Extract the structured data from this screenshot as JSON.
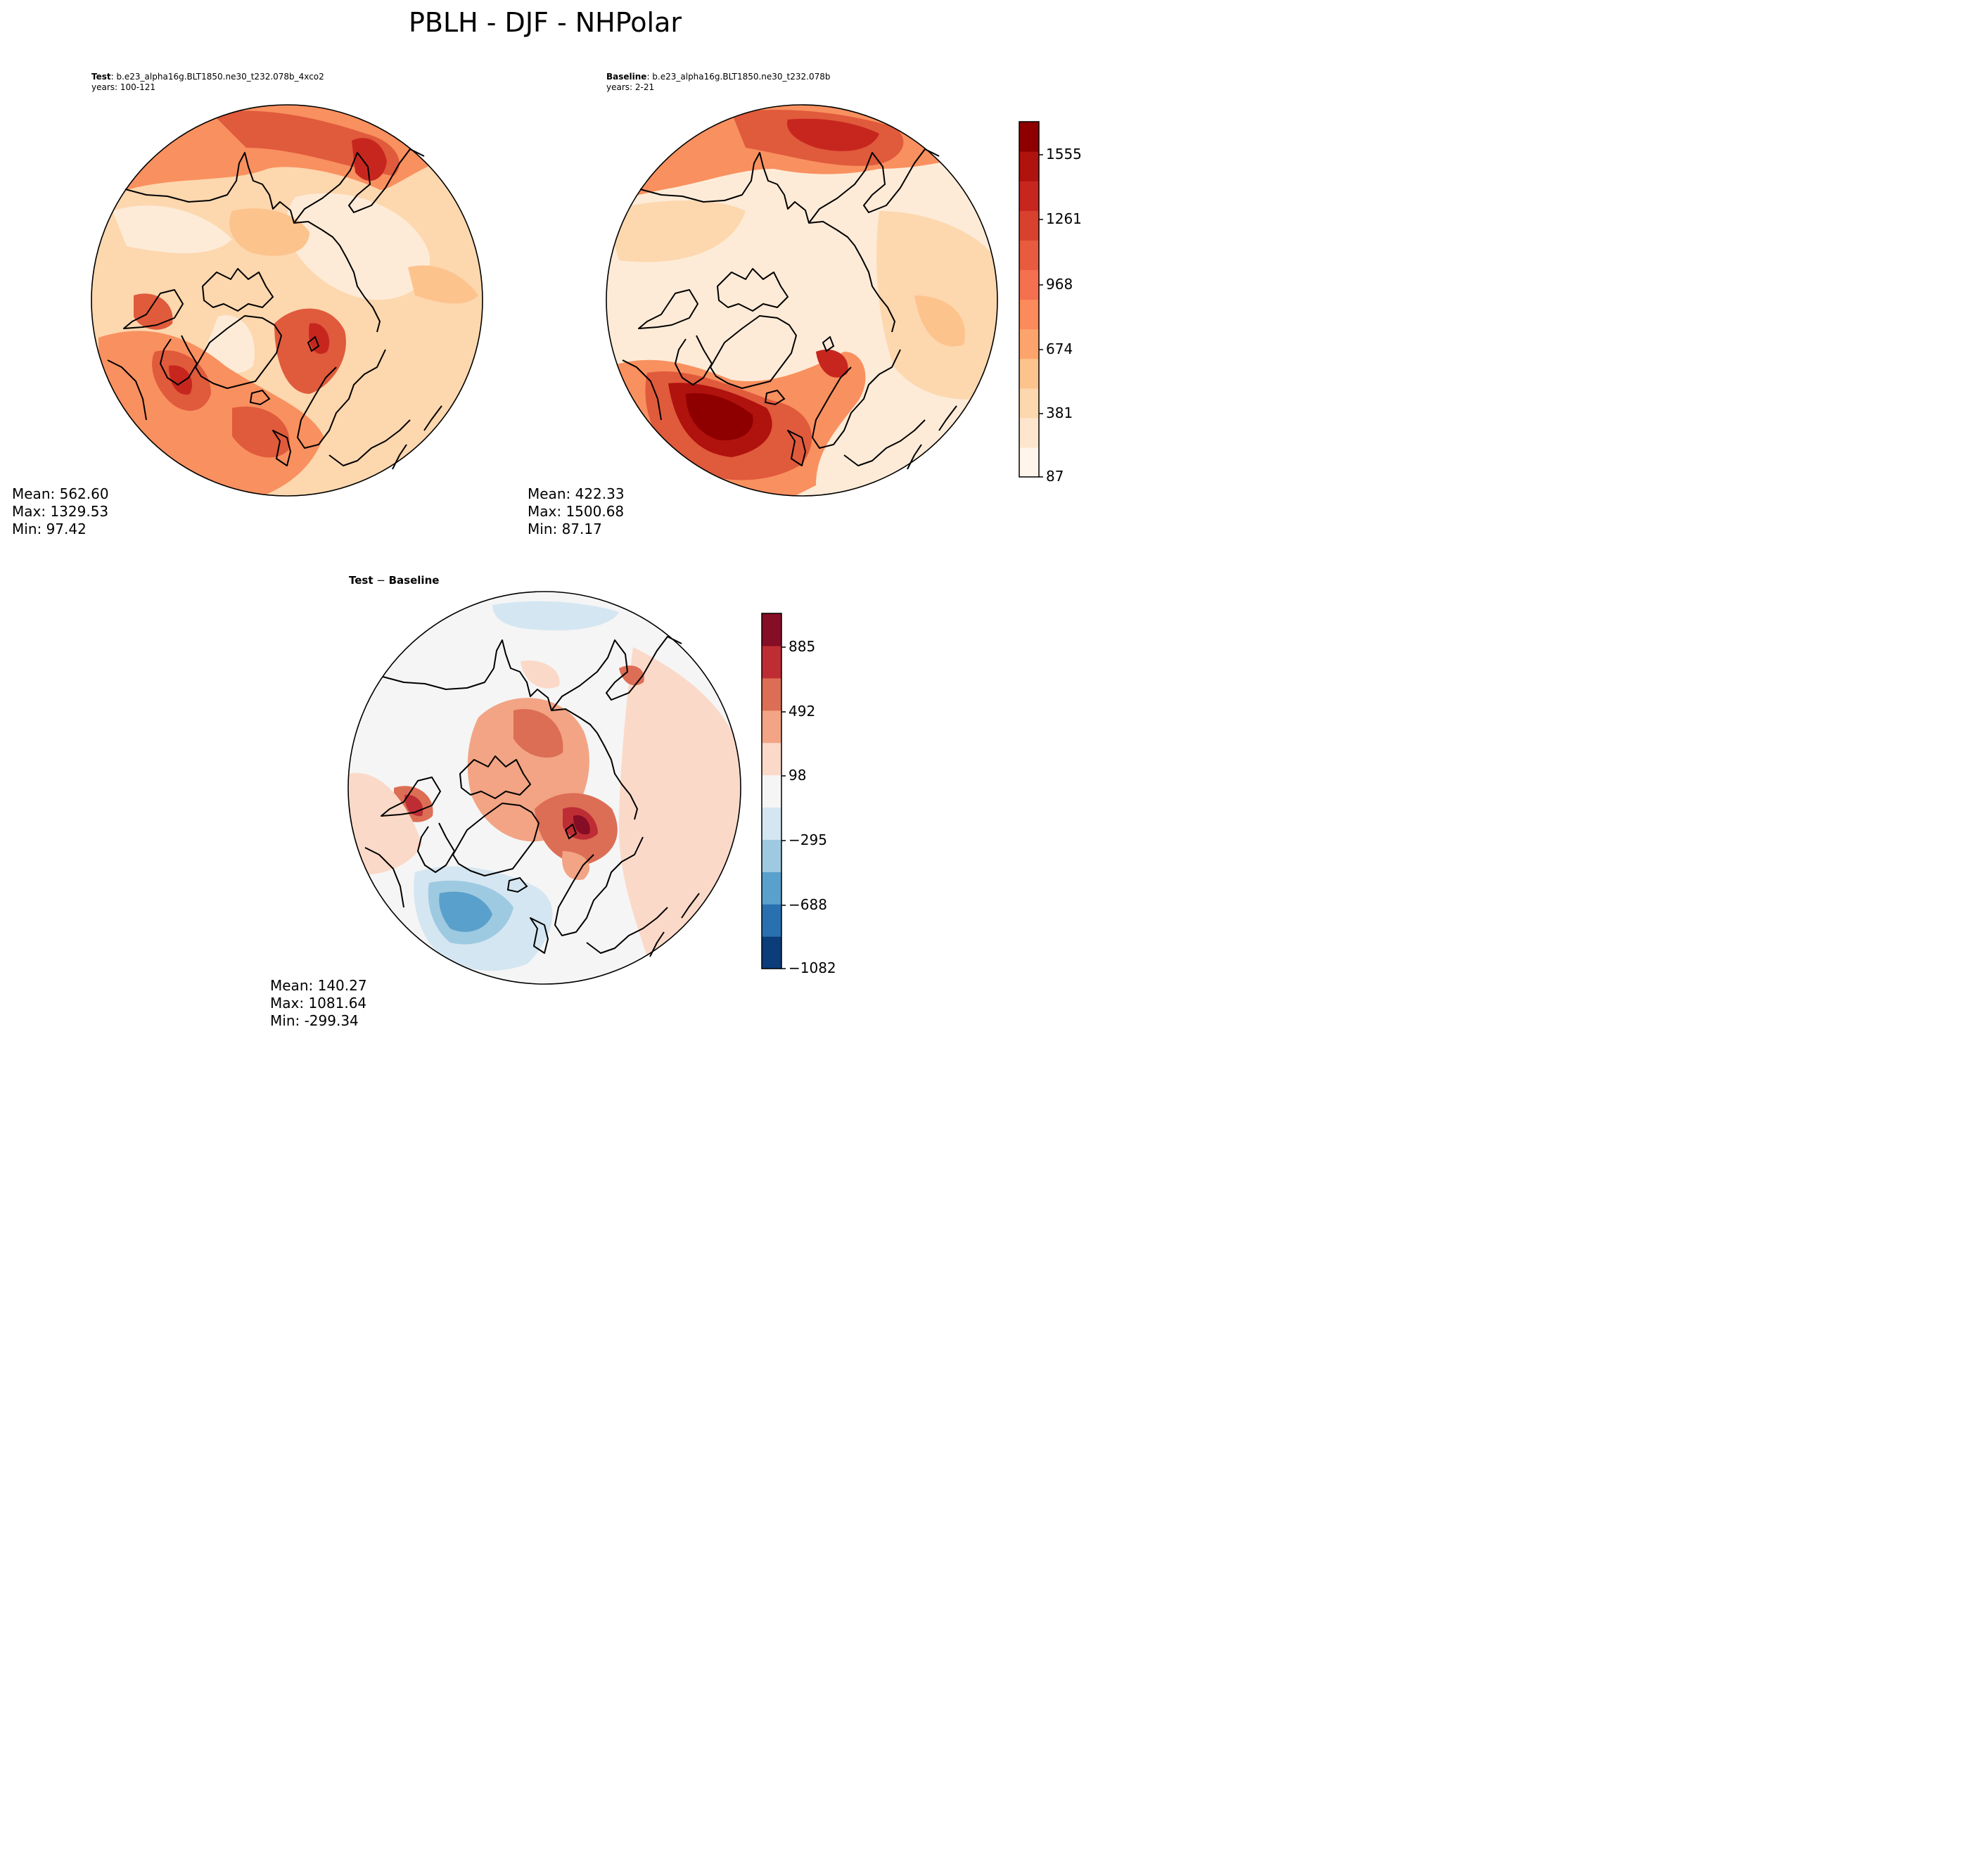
{
  "figure": {
    "title": "PBLH - DJF - NHPolar"
  },
  "panels": {
    "test": {
      "label_bold": "Test",
      "case": ": b.e23_alpha16g.BLT1850.ne30_t232.078b_4xco2",
      "years": "years: 100-121",
      "stats": {
        "mean": "Mean: 562.60",
        "max": "Max: 1329.53",
        "min": "Min: 97.42"
      }
    },
    "baseline": {
      "label_bold": "Baseline",
      "case": ": b.e23_alpha16g.BLT1850.ne30_t232.078b",
      "years": "years: 2-21",
      "stats": {
        "mean": "Mean: 422.33",
        "max": "Max: 1500.68",
        "min": "Min: 87.17"
      }
    },
    "diff": {
      "label_test": "Test",
      "label_sep": " − ",
      "label_base": "Baseline",
      "stats": {
        "mean": "Mean: 140.27",
        "max": "Max: 1081.64",
        "min": "Min: -299.34"
      }
    }
  },
  "colorbars": {
    "abs": {
      "ticks": [
        "1555",
        "1261",
        "968",
        "674",
        "381",
        "87"
      ],
      "colors": [
        "#fff5eb",
        "#fee6ce",
        "#fdd7ae",
        "#fdc38d",
        "#fda46d",
        "#fc8a5a",
        "#f4704f",
        "#e85b3f",
        "#d9412f",
        "#c7261f",
        "#b0120e",
        "#8e0000"
      ]
    },
    "diff": {
      "ticks": [
        "885",
        "492",
        "98",
        "−295",
        "−688",
        "−1082"
      ],
      "colors": [
        "#0a3d7a",
        "#2870b0",
        "#5aa0cc",
        "#9ecae1",
        "#d4e6f1",
        "#f5f5f5",
        "#fbd9c8",
        "#f2a484",
        "#dc6e55",
        "#bf2d34",
        "#850d25"
      ]
    }
  },
  "map_colors": {
    "abs_light": "#fdebd7",
    "abs_mid": "#fdc38d",
    "abs_orange": "#f9905f",
    "abs_red": "#e05a3c",
    "abs_dark": "#b0120e",
    "abs_darkest": "#8e0000",
    "diff_neutral": "#f5f5f5",
    "diff_pink": "#fbd9c8",
    "diff_salmon": "#f2a484",
    "diff_red": "#dc6e55",
    "diff_dark": "#bf2d34",
    "diff_lightblue": "#d4e6f1",
    "diff_blue": "#9ecae1",
    "diff_deepblue": "#5aa0cc"
  }
}
